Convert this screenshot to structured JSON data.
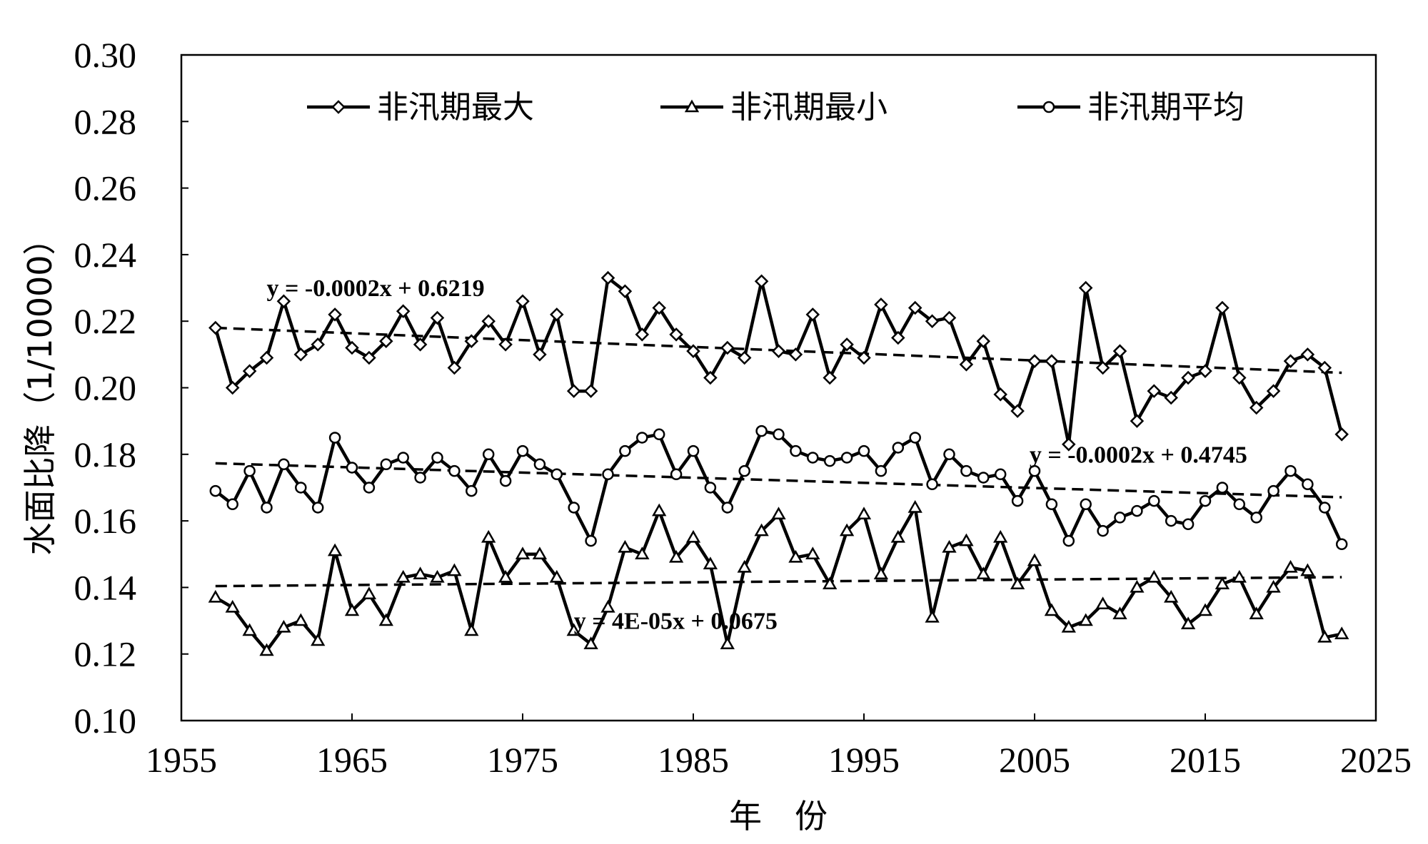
{
  "chart_data": {
    "type": "line",
    "xlabel": "年　份",
    "ylabel": "水面比降（1/10000）",
    "xlim": [
      1955,
      2025
    ],
    "ylim": [
      0.1,
      0.3
    ],
    "x_ticks": [
      "1955",
      "1965",
      "1975",
      "1985",
      "1995",
      "2005",
      "2015",
      "2025"
    ],
    "y_ticks": [
      "0.10",
      "0.12",
      "0.14",
      "0.16",
      "0.18",
      "0.20",
      "0.22",
      "0.24",
      "0.26",
      "0.28",
      "0.30"
    ],
    "grid": false,
    "legend_position": "top",
    "x": [
      1957,
      1958,
      1959,
      1960,
      1961,
      1962,
      1963,
      1964,
      1965,
      1966,
      1967,
      1968,
      1969,
      1970,
      1971,
      1972,
      1973,
      1974,
      1975,
      1976,
      1977,
      1978,
      1979,
      1980,
      1981,
      1982,
      1983,
      1984,
      1985,
      1986,
      1987,
      1988,
      1989,
      1990,
      1991,
      1992,
      1993,
      1994,
      1995,
      1996,
      1997,
      1998,
      1999,
      2000,
      2001,
      2002,
      2003,
      2004,
      2005,
      2006,
      2007,
      2008,
      2009,
      2010,
      2011,
      2012,
      2013,
      2014,
      2015,
      2016,
      2017,
      2018,
      2019,
      2020,
      2021,
      2022,
      2023
    ],
    "series": [
      {
        "name": "非汛期最大",
        "marker": "diamond",
        "values": [
          0.218,
          0.2,
          0.205,
          0.209,
          0.226,
          0.21,
          0.213,
          0.222,
          0.212,
          0.209,
          0.214,
          0.223,
          0.213,
          0.221,
          0.206,
          0.214,
          0.22,
          0.213,
          0.226,
          0.21,
          0.222,
          0.199,
          0.199,
          0.233,
          0.229,
          0.216,
          0.224,
          0.216,
          0.211,
          0.203,
          0.212,
          0.209,
          0.232,
          0.211,
          0.21,
          0.222,
          0.203,
          0.213,
          0.209,
          0.225,
          0.215,
          0.224,
          0.22,
          0.221,
          0.207,
          0.214,
          0.198,
          0.193,
          0.208,
          0.208,
          0.183,
          0.23,
          0.206,
          0.211,
          0.19,
          0.199,
          0.197,
          0.203,
          0.205,
          0.224,
          0.203,
          0.194,
          0.199,
          0.208,
          0.21,
          0.206,
          0.186
        ],
        "trend": {
          "equation": "y = -0.0002x + 0.6219",
          "start": [
            1957,
            0.218
          ],
          "end": [
            2023,
            0.2045
          ]
        }
      },
      {
        "name": "非汛期最小",
        "marker": "triangle",
        "values": [
          0.137,
          0.134,
          0.127,
          0.121,
          0.128,
          0.13,
          0.124,
          0.151,
          0.133,
          0.138,
          0.13,
          0.143,
          0.144,
          0.143,
          0.145,
          0.127,
          0.155,
          0.143,
          0.15,
          0.15,
          0.143,
          0.127,
          0.123,
          0.134,
          0.152,
          0.15,
          0.163,
          0.149,
          0.155,
          0.147,
          0.123,
          0.146,
          0.157,
          0.162,
          0.149,
          0.15,
          0.141,
          0.157,
          0.162,
          0.144,
          0.155,
          0.164,
          0.131,
          0.152,
          0.154,
          0.144,
          0.155,
          0.141,
          0.148,
          0.133,
          0.128,
          0.13,
          0.135,
          0.132,
          0.14,
          0.143,
          0.137,
          0.129,
          0.133,
          0.141,
          0.143,
          0.132,
          0.14,
          0.146,
          0.145,
          0.125,
          0.126
        ],
        "trend": {
          "equation": "y = 4E-05x + 0.0675",
          "start": [
            1957,
            0.1404
          ],
          "end": [
            2023,
            0.1431
          ]
        }
      },
      {
        "name": "非汛期平均",
        "marker": "circle",
        "values": [
          0.169,
          0.165,
          0.175,
          0.164,
          0.177,
          0.17,
          0.164,
          0.185,
          0.176,
          0.17,
          0.177,
          0.179,
          0.173,
          0.179,
          0.175,
          0.169,
          0.18,
          0.172,
          0.181,
          0.177,
          0.174,
          0.164,
          0.154,
          0.174,
          0.181,
          0.185,
          0.186,
          0.174,
          0.181,
          0.17,
          0.164,
          0.175,
          0.187,
          0.186,
          0.181,
          0.179,
          0.178,
          0.179,
          0.181,
          0.175,
          0.182,
          0.185,
          0.171,
          0.18,
          0.175,
          0.173,
          0.174,
          0.166,
          0.175,
          0.165,
          0.154,
          0.165,
          0.157,
          0.161,
          0.163,
          0.166,
          0.16,
          0.159,
          0.166,
          0.17,
          0.165,
          0.161,
          0.169,
          0.175,
          0.171,
          0.164,
          0.153
        ],
        "trend": {
          "equation": "y = -0.0002x + 0.4745",
          "start": [
            1957,
            0.1773
          ],
          "end": [
            2023,
            0.1671
          ]
        }
      }
    ]
  }
}
